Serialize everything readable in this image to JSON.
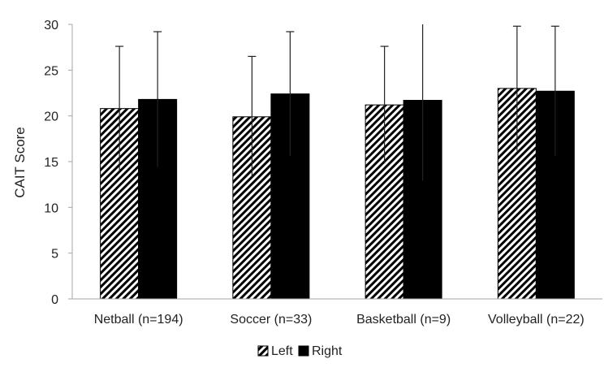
{
  "chart_data": {
    "type": "bar",
    "title": "",
    "xlabel": "",
    "ylabel": "CAIT Score",
    "ylim": [
      0,
      30
    ],
    "yticks": [
      0,
      5,
      10,
      15,
      20,
      25,
      30
    ],
    "grid": false,
    "legend_position": "bottom",
    "categories": [
      "Netball (n=194)",
      "Soccer (n=33)",
      "Basketball (n=9)",
      "Volleyball (n=22)"
    ],
    "series": [
      {
        "name": "Left",
        "pattern": "diagonal-hatch",
        "values": [
          20.8,
          19.9,
          21.2,
          23.0
        ],
        "error": [
          6.8,
          6.6,
          6.4,
          6.8
        ]
      },
      {
        "name": "Right",
        "pattern": "solid",
        "values": [
          21.8,
          22.4,
          21.7,
          22.7
        ],
        "error": [
          7.4,
          6.8,
          8.8,
          7.1
        ]
      }
    ]
  },
  "colors": {
    "bar_fill": "#000000",
    "hatch_bg": "#ffffff",
    "axis": "#a6a6a6",
    "error_bar": "#222222"
  }
}
